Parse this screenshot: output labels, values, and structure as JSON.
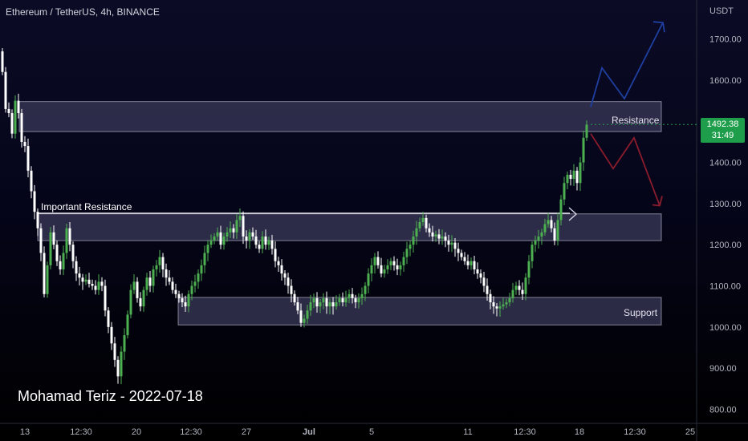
{
  "header": {
    "symbol_title": "Ethereum / TetherUS, 4h, BINANCE"
  },
  "author_note": "Mohamad Teriz - 2022-07-18",
  "price_badge": {
    "price": "1492.38",
    "countdown": "31:49",
    "color": "#1e9e4a"
  },
  "zones": {
    "resistance_label": "Resistance",
    "important_label": "Important Resistance",
    "support_label": "Support"
  },
  "colors": {
    "up": "#4caf50",
    "down": "#ffffff",
    "zone_fill": "#3a3a5a",
    "zone_border": "#c8c8d8",
    "bullish_arrow": "#1f3fa0",
    "bearish_arrow": "#8b1c2c"
  },
  "chart_data": {
    "type": "candlestick",
    "y_axis_unit": "USDT",
    "ylim": [
      780,
      1760
    ],
    "y_ticks": [
      "1700.00",
      "1600.00",
      "1400.00",
      "1300.00",
      "1200.00",
      "1100.00",
      "1000.00",
      "900.00",
      "800.00"
    ],
    "x_ticks": [
      "13",
      "12:30",
      "20",
      "12:30",
      "27",
      "Jul",
      "5",
      "11",
      "12:30",
      "18",
      "12:30",
      "25"
    ],
    "zones": [
      {
        "name": "Resistance",
        "low": 1475,
        "high": 1548
      },
      {
        "name": "Important Resistance",
        "low": 1210,
        "high": 1275
      },
      {
        "name": "Support",
        "low": 1005,
        "high": 1072
      }
    ],
    "current_price": 1492.38,
    "price_path": [
      [
        0,
        1670
      ],
      [
        4,
        1620
      ],
      [
        8,
        1530
      ],
      [
        12,
        1520
      ],
      [
        16,
        1470
      ],
      [
        20,
        1550
      ],
      [
        24,
        1520
      ],
      [
        28,
        1450
      ],
      [
        32,
        1440
      ],
      [
        36,
        1380
      ],
      [
        40,
        1330
      ],
      [
        44,
        1280
      ],
      [
        48,
        1240
      ],
      [
        52,
        1180
      ],
      [
        56,
        1080
      ],
      [
        60,
        1150
      ],
      [
        64,
        1230
      ],
      [
        68,
        1200
      ],
      [
        72,
        1160
      ],
      [
        76,
        1140
      ],
      [
        80,
        1180
      ],
      [
        84,
        1240
      ],
      [
        88,
        1200
      ],
      [
        92,
        1160
      ],
      [
        96,
        1130
      ],
      [
        100,
        1120
      ],
      [
        104,
        1110
      ],
      [
        108,
        1115
      ],
      [
        112,
        1105
      ],
      [
        116,
        1100
      ],
      [
        120,
        1090
      ],
      [
        124,
        1110
      ],
      [
        128,
        1100
      ],
      [
        132,
        1040
      ],
      [
        136,
        1000
      ],
      [
        140,
        960
      ],
      [
        144,
        920
      ],
      [
        148,
        880
      ],
      [
        152,
        940
      ],
      [
        156,
        980
      ],
      [
        160,
        1030
      ],
      [
        164,
        1090
      ],
      [
        168,
        1110
      ],
      [
        172,
        1070
      ],
      [
        176,
        1050
      ],
      [
        180,
        1090
      ],
      [
        184,
        1120
      ],
      [
        188,
        1100
      ],
      [
        192,
        1140
      ],
      [
        196,
        1150
      ],
      [
        200,
        1170
      ],
      [
        204,
        1140
      ],
      [
        208,
        1120
      ],
      [
        212,
        1110
      ],
      [
        216,
        1090
      ],
      [
        220,
        1080
      ],
      [
        224,
        1070
      ],
      [
        228,
        1060
      ],
      [
        232,
        1050
      ],
      [
        236,
        1080
      ],
      [
        240,
        1100
      ],
      [
        244,
        1110
      ],
      [
        248,
        1130
      ],
      [
        252,
        1150
      ],
      [
        256,
        1180
      ],
      [
        260,
        1200
      ],
      [
        264,
        1210
      ],
      [
        268,
        1220
      ],
      [
        272,
        1230
      ],
      [
        276,
        1200
      ],
      [
        280,
        1220
      ],
      [
        284,
        1230
      ],
      [
        288,
        1240
      ],
      [
        292,
        1230
      ],
      [
        296,
        1260
      ],
      [
        300,
        1270
      ],
      [
        304,
        1220
      ],
      [
        308,
        1210
      ],
      [
        312,
        1230
      ],
      [
        316,
        1220
      ],
      [
        320,
        1200
      ],
      [
        324,
        1190
      ],
      [
        328,
        1220
      ],
      [
        332,
        1200
      ],
      [
        336,
        1210
      ],
      [
        340,
        1190
      ],
      [
        344,
        1160
      ],
      [
        348,
        1150
      ],
      [
        352,
        1130
      ],
      [
        356,
        1120
      ],
      [
        360,
        1100
      ],
      [
        364,
        1080
      ],
      [
        368,
        1060
      ],
      [
        372,
        1040
      ],
      [
        376,
        1010
      ],
      [
        380,
        1020
      ],
      [
        384,
        1040
      ],
      [
        388,
        1060
      ],
      [
        392,
        1070
      ],
      [
        396,
        1050
      ],
      [
        400,
        1060
      ],
      [
        404,
        1070
      ],
      [
        408,
        1050
      ],
      [
        412,
        1060
      ],
      [
        416,
        1050
      ],
      [
        420,
        1060
      ],
      [
        424,
        1070
      ],
      [
        428,
        1060
      ],
      [
        432,
        1070
      ],
      [
        436,
        1080
      ],
      [
        440,
        1070
      ],
      [
        444,
        1060
      ],
      [
        448,
        1070
      ],
      [
        452,
        1080
      ],
      [
        456,
        1100
      ],
      [
        460,
        1130
      ],
      [
        464,
        1150
      ],
      [
        468,
        1170
      ],
      [
        472,
        1150
      ],
      [
        476,
        1130
      ],
      [
        480,
        1140
      ],
      [
        484,
        1150
      ],
      [
        488,
        1160
      ],
      [
        492,
        1150
      ],
      [
        496,
        1140
      ],
      [
        500,
        1150
      ],
      [
        504,
        1170
      ],
      [
        508,
        1190
      ],
      [
        512,
        1200
      ],
      [
        516,
        1220
      ],
      [
        520,
        1240
      ],
      [
        524,
        1255
      ],
      [
        528,
        1265
      ],
      [
        532,
        1240
      ],
      [
        536,
        1230
      ],
      [
        540,
        1220
      ],
      [
        544,
        1225
      ],
      [
        548,
        1215
      ],
      [
        552,
        1220
      ],
      [
        556,
        1210
      ],
      [
        560,
        1200
      ],
      [
        564,
        1205
      ],
      [
        568,
        1190
      ],
      [
        572,
        1180
      ],
      [
        576,
        1170
      ],
      [
        580,
        1160
      ],
      [
        584,
        1150
      ],
      [
        588,
        1160
      ],
      [
        592,
        1140
      ],
      [
        596,
        1130
      ],
      [
        600,
        1120
      ],
      [
        604,
        1100
      ],
      [
        608,
        1080
      ],
      [
        612,
        1060
      ],
      [
        616,
        1050
      ],
      [
        620,
        1045
      ],
      [
        624,
        1050
      ],
      [
        628,
        1055
      ],
      [
        632,
        1060
      ],
      [
        636,
        1070
      ],
      [
        640,
        1090
      ],
      [
        644,
        1100
      ],
      [
        648,
        1090
      ],
      [
        652,
        1080
      ],
      [
        656,
        1120
      ],
      [
        660,
        1160
      ],
      [
        664,
        1200
      ],
      [
        668,
        1210
      ],
      [
        672,
        1220
      ],
      [
        676,
        1230
      ],
      [
        680,
        1250
      ],
      [
        684,
        1260
      ],
      [
        688,
        1240
      ],
      [
        692,
        1210
      ],
      [
        696,
        1260
      ],
      [
        700,
        1310
      ],
      [
        704,
        1350
      ],
      [
        708,
        1370
      ],
      [
        712,
        1360
      ],
      [
        716,
        1380
      ],
      [
        720,
        1350
      ],
      [
        724,
        1400
      ],
      [
        728,
        1460
      ],
      [
        732,
        1492
      ]
    ],
    "bullish_projection": [
      [
        736,
        1535
      ],
      [
        750,
        1630
      ],
      [
        778,
        1555
      ],
      [
        826,
        1740
      ]
    ],
    "bearish_projection": [
      [
        736,
        1470
      ],
      [
        764,
        1385
      ],
      [
        790,
        1460
      ],
      [
        822,
        1295
      ]
    ]
  }
}
